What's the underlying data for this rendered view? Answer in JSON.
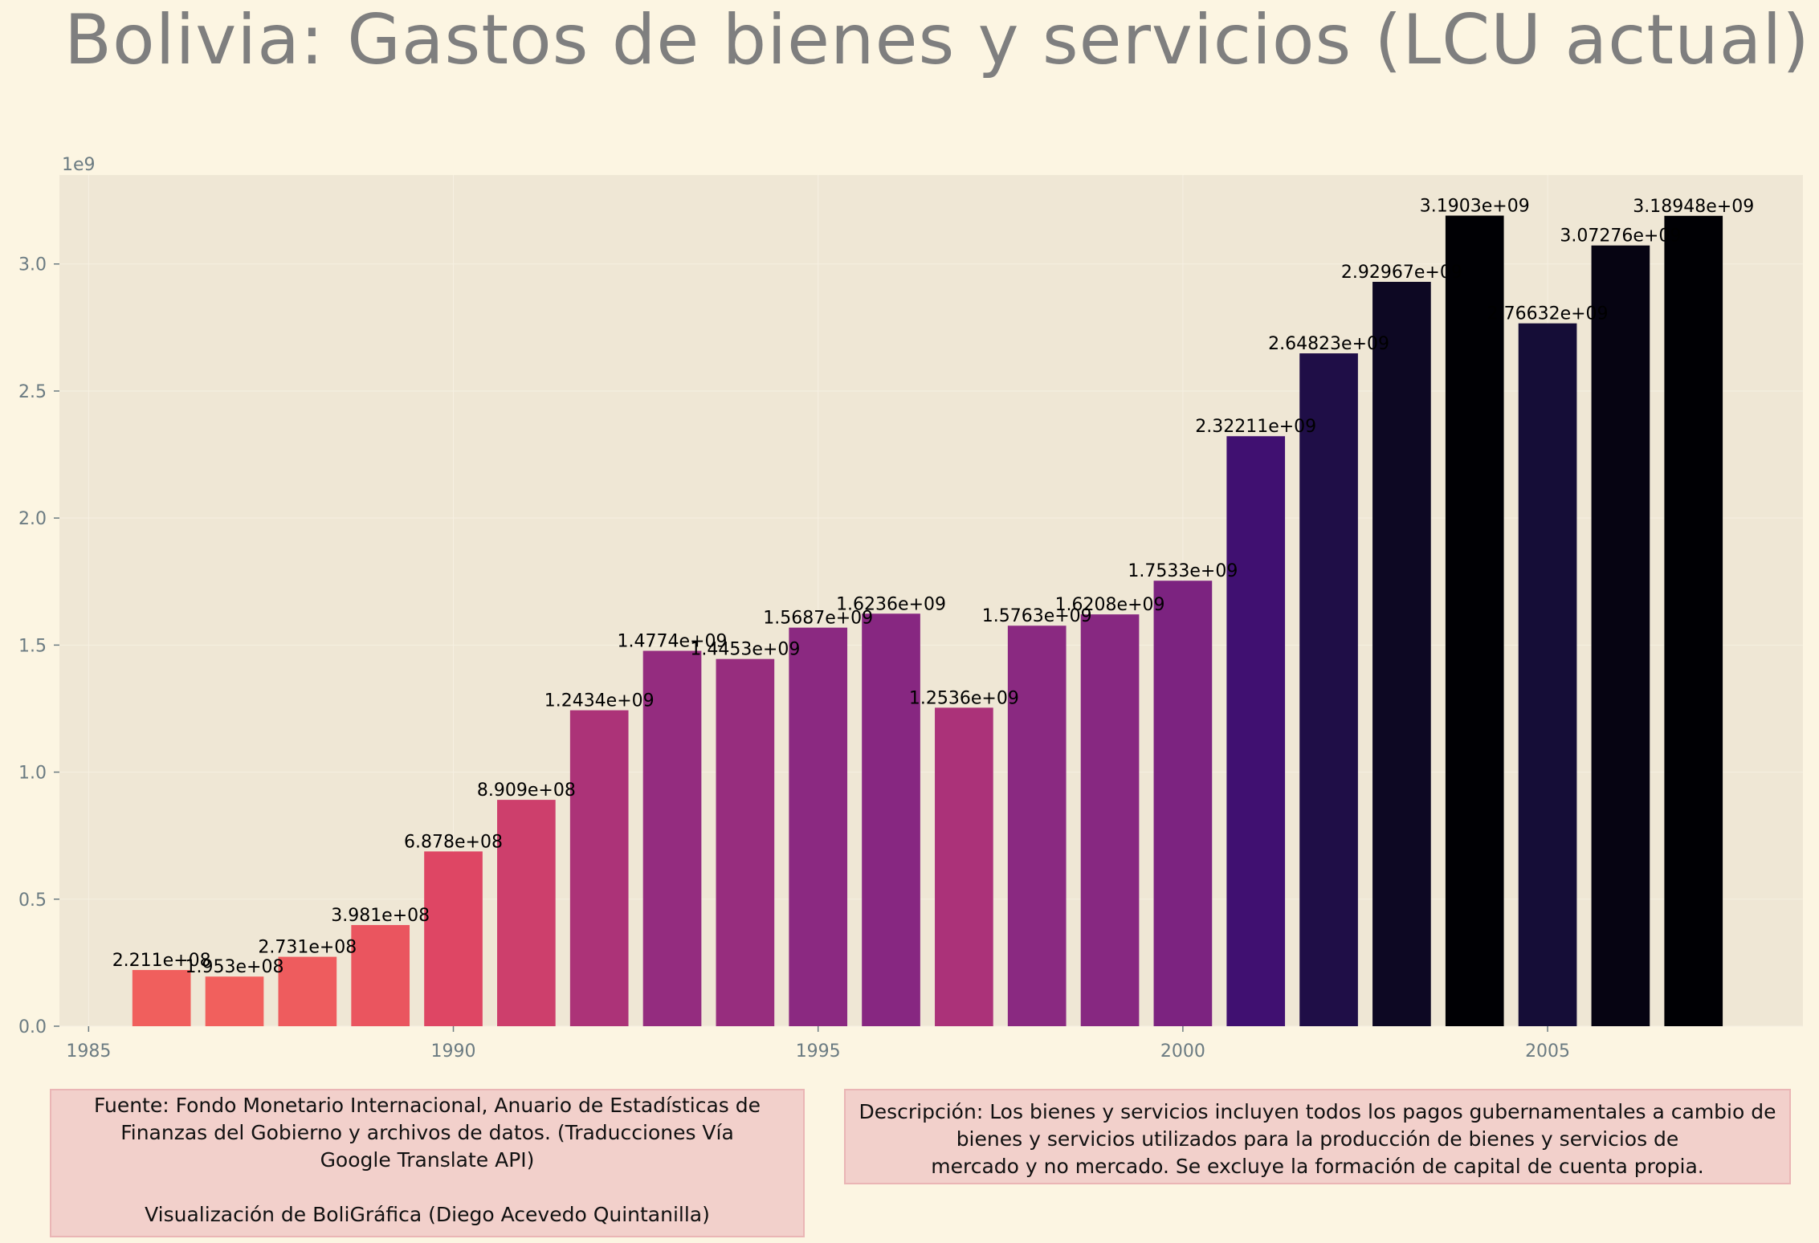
{
  "title": "Bolivia:  Gastos de bienes y servicios (LCU actual)",
  "chart_data": {
    "type": "bar",
    "title": "Bolivia:  Gastos de bienes y servicios (LCU actual)",
    "xlabel": "",
    "ylabel": "",
    "y_offset_label": "1e9",
    "x": [
      1986,
      1987,
      1988,
      1989,
      1990,
      1991,
      1992,
      1993,
      1994,
      1995,
      1996,
      1997,
      1998,
      1999,
      2000,
      2001,
      2002,
      2003,
      2004,
      2005,
      2006,
      2007
    ],
    "values": [
      221100000,
      195300000,
      273100000,
      398100000,
      687800000,
      890900000,
      1243400000,
      1477400000,
      1445300000,
      1568700000,
      1623600000,
      1253600000,
      1576300000,
      1620800000,
      1753300000,
      2322110000,
      2648230000,
      2929670000,
      3190300000,
      2766320000,
      3072760000,
      3189480000
    ],
    "data_labels": [
      "2.211e+08",
      "1.953e+08",
      "2.731e+08",
      "3.981e+08",
      "6.878e+08",
      "8.909e+08",
      "1.2434e+09",
      "1.4774e+09",
      "1.4453e+09",
      "1.5687e+09",
      "1.6236e+09",
      "1.2536e+09",
      "1.5763e+09",
      "1.6208e+09",
      "1.7533e+09",
      "2.32211e+09",
      "2.64823e+09",
      "2.92967e+09",
      "3.1903e+09",
      "2.76632e+09",
      "3.07276e+09",
      "3.18948e+09"
    ],
    "x_ticks": [
      "1985",
      "1990",
      "1995",
      "2000",
      "2005"
    ],
    "x_tick_values": [
      1985,
      1990,
      1995,
      2000,
      2005
    ],
    "y_ticks": [
      "0.0",
      "0.5",
      "1.0",
      "1.5",
      "2.0",
      "2.5",
      "3.0"
    ],
    "y_tick_values": [
      0,
      0.5,
      1.0,
      1.5,
      2.0,
      2.5,
      3.0
    ],
    "xlim": [
      1984.6,
      2008.5
    ],
    "ylim": [
      0,
      3.35
    ],
    "grid": true,
    "colormap": "magma_r",
    "colors": {
      "background": "#fcf5e2",
      "plot_background": "#efe7d5",
      "tick_color": "#6b7b82",
      "title_color": "#7f7f7f",
      "low": "#f06060",
      "high": "#000004"
    }
  },
  "notes": {
    "source_lines": [
      "Fuente: Fondo Monetario Internacional, Anuario de Estadísticas de",
      "Finanzas del Gobierno y archivos de datos. (Traducciones Vía",
      "Google Translate API)"
    ],
    "credit": "Visualización de BoliGráfica (Diego Acevedo Quintanilla)",
    "description_lines": [
      "Descripción: Los bienes y servicios incluyen todos los pagos gubernamentales a cambio de",
      "bienes y servicios utilizados para la producción de bienes y servicios de",
      "mercado y no mercado. Se excluye la formación de capital de cuenta propia."
    ]
  }
}
